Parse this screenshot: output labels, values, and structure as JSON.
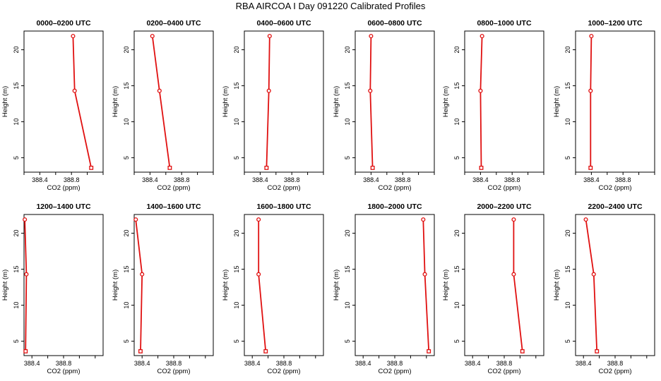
{
  "title": "RBA AIRCOA I  Day 091220  Calibrated Profiles",
  "chart_data": [
    {
      "type": "line",
      "title": "0000–0200 UTC",
      "xlabel": "CO2 (ppm)",
      "ylabel": "Height (m)",
      "xlim": [
        388.2,
        389.2
      ],
      "ylim": [
        3,
        22.6
      ],
      "xticks": [
        "388.4",
        "388.8"
      ],
      "yticks": [
        "5",
        "10",
        "15",
        "20"
      ],
      "x": [
        388.82,
        388.84,
        389.05
      ],
      "y": [
        21.9,
        14.3,
        3.6
      ]
    },
    {
      "type": "line",
      "title": "0200–0400 UTC",
      "xlabel": "CO2 (ppm)",
      "ylabel": "Height (m)",
      "xlim": [
        388.2,
        389.2
      ],
      "ylim": [
        3,
        22.6
      ],
      "xticks": [
        "388.4",
        "388.8"
      ],
      "yticks": [
        "5",
        "10",
        "15",
        "20"
      ],
      "x": [
        388.43,
        388.52,
        388.65
      ],
      "y": [
        21.9,
        14.3,
        3.6
      ]
    },
    {
      "type": "line",
      "title": "0400–0600 UTC",
      "xlabel": "CO2 (ppm)",
      "ylabel": "Height (m)",
      "xlim": [
        388.2,
        389.2
      ],
      "ylim": [
        3,
        22.6
      ],
      "xticks": [
        "388.4",
        "388.8"
      ],
      "yticks": [
        "5",
        "10",
        "15",
        "20"
      ],
      "x": [
        388.52,
        388.51,
        388.48
      ],
      "y": [
        21.9,
        14.3,
        3.6
      ]
    },
    {
      "type": "line",
      "title": "0600–0800 UTC",
      "xlabel": "CO2 (ppm)",
      "ylabel": "Height (m)",
      "xlim": [
        388.2,
        389.2
      ],
      "ylim": [
        3,
        22.6
      ],
      "xticks": [
        "388.4",
        "388.8"
      ],
      "yticks": [
        "5",
        "10",
        "15",
        "20"
      ],
      "x": [
        388.4,
        388.39,
        388.42
      ],
      "y": [
        21.9,
        14.3,
        3.6
      ]
    },
    {
      "type": "line",
      "title": "0800–1000 UTC",
      "xlabel": "CO2 (ppm)",
      "ylabel": "Height (m)",
      "xlim": [
        388.2,
        389.2
      ],
      "ylim": [
        3,
        22.6
      ],
      "xticks": [
        "388.4",
        "388.8"
      ],
      "yticks": [
        "5",
        "10",
        "15",
        "20"
      ],
      "x": [
        388.42,
        388.4,
        388.41
      ],
      "y": [
        21.9,
        14.3,
        3.6
      ]
    },
    {
      "type": "line",
      "title": "1000–1200 UTC",
      "xlabel": "CO2 (ppm)",
      "ylabel": "Height (m)",
      "xlim": [
        388.2,
        389.2
      ],
      "ylim": [
        3,
        22.6
      ],
      "xticks": [
        "388.4",
        "388.8"
      ],
      "yticks": [
        "5",
        "10",
        "15",
        "20"
      ],
      "x": [
        388.4,
        388.39,
        388.39
      ],
      "y": [
        21.9,
        14.3,
        3.6
      ]
    },
    {
      "type": "line",
      "title": "1200–1400 UTC",
      "xlabel": "CO2 (ppm)",
      "ylabel": "Height (m)",
      "xlim": [
        388.3,
        389.3
      ],
      "ylim": [
        3,
        22.6
      ],
      "xticks": [
        "388.4",
        "388.8"
      ],
      "yticks": [
        "5",
        "10",
        "15",
        "20"
      ],
      "x": [
        388.31,
        388.33,
        388.32
      ],
      "y": [
        21.9,
        14.3,
        3.6
      ]
    },
    {
      "type": "line",
      "title": "1400–1600 UTC",
      "xlabel": "CO2 (ppm)",
      "ylabel": "Height (m)",
      "xlim": [
        388.3,
        389.3
      ],
      "ylim": [
        3,
        22.6
      ],
      "xticks": [
        "388.4",
        "388.8"
      ],
      "yticks": [
        "5",
        "10",
        "15",
        "20"
      ],
      "x": [
        388.32,
        388.4,
        388.38
      ],
      "y": [
        21.9,
        14.3,
        3.6
      ]
    },
    {
      "type": "line",
      "title": "1600–1800 UTC",
      "xlabel": "CO2 (ppm)",
      "ylabel": "Height (m)",
      "xlim": [
        388.3,
        389.3
      ],
      "ylim": [
        3,
        22.6
      ],
      "xticks": [
        "388.4",
        "388.8"
      ],
      "yticks": [
        "5",
        "10",
        "15",
        "20"
      ],
      "x": [
        388.48,
        388.48,
        388.57
      ],
      "y": [
        21.9,
        14.3,
        3.6
      ]
    },
    {
      "type": "line",
      "title": "1800–2000 UTC",
      "xlabel": "CO2 (ppm)",
      "ylabel": "Height (m)",
      "xlim": [
        388.3,
        389.3
      ],
      "ylim": [
        3,
        22.6
      ],
      "xticks": [
        "388.4",
        "388.8"
      ],
      "yticks": [
        "5",
        "10",
        "15",
        "20"
      ],
      "x": [
        389.16,
        389.18,
        389.23
      ],
      "y": [
        21.9,
        14.3,
        3.6
      ]
    },
    {
      "type": "line",
      "title": "2000–2200 UTC",
      "xlabel": "CO2 (ppm)",
      "ylabel": "Height (m)",
      "xlim": [
        388.3,
        389.3
      ],
      "ylim": [
        3,
        22.6
      ],
      "xticks": [
        "388.4",
        "388.8"
      ],
      "yticks": [
        "5",
        "10",
        "15",
        "20"
      ],
      "x": [
        388.92,
        388.92,
        389.03
      ],
      "y": [
        21.9,
        14.3,
        3.6
      ]
    },
    {
      "type": "line",
      "title": "2200–2400 UTC",
      "xlabel": "CO2 (ppm)",
      "ylabel": "Height (m)",
      "xlim": [
        388.3,
        389.3
      ],
      "ylim": [
        3,
        22.6
      ],
      "xticks": [
        "388.4",
        "388.8"
      ],
      "yticks": [
        "5",
        "10",
        "15",
        "20"
      ],
      "x": [
        388.43,
        388.53,
        388.57
      ],
      "y": [
        21.9,
        14.3,
        3.6
      ]
    }
  ],
  "style": {
    "line_color": "#e01010",
    "axis_color": "#000000",
    "tick_values_x": [
      388.4,
      388.8
    ]
  }
}
